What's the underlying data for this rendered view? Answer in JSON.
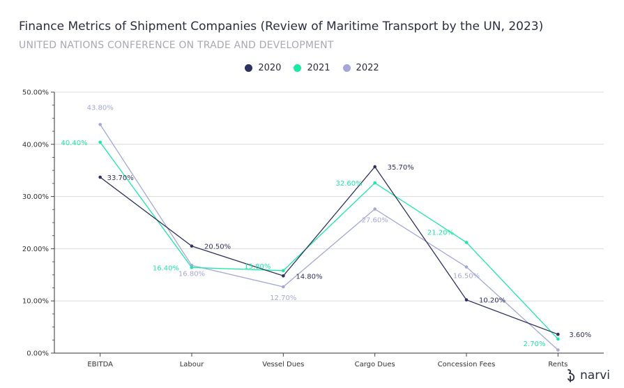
{
  "chart_data": {
    "type": "line",
    "title": "Finance Metrics of Shipment Companies (Review of Maritime Transport by the UN, 2023)",
    "subtitle": "UNITED NATIONS CONFERENCE ON TRADE AND DEVELOPMENT",
    "categories": [
      "EBITDA",
      "Labour",
      "Vessel Dues",
      "Cargo Dues",
      "Concession Fees",
      "Rents"
    ],
    "ylim": [
      0,
      50
    ],
    "yticks": [
      0,
      10,
      20,
      30,
      40,
      50
    ],
    "ytick_labels": [
      "0.00%",
      "10.00%",
      "20.00%",
      "30.00%",
      "40.00%",
      "50.00%"
    ],
    "legend_position": "top-center",
    "series": [
      {
        "name": "2020",
        "color": "#2f3160",
        "values": [
          33.7,
          20.5,
          14.8,
          35.7,
          10.2,
          3.6
        ],
        "labels": [
          "33.70%",
          "20.50%",
          "14.80%",
          "35.70%",
          "10.20%",
          "3.60%"
        ]
      },
      {
        "name": "2021",
        "color": "#1de9a6",
        "values": [
          40.4,
          16.4,
          15.8,
          32.6,
          21.2,
          2.7
        ],
        "labels": [
          "40.40%",
          "16.40%",
          "15.80%",
          "32.60%",
          "21.20%",
          "2.70%"
        ]
      },
      {
        "name": "2022",
        "color": "#a4a8d8",
        "values": [
          43.8,
          16.8,
          12.7,
          27.6,
          16.5,
          0.6
        ],
        "labels": [
          "43.80%",
          "16.80%",
          "12.70%",
          "27.60%",
          "16.50%",
          ""
        ]
      }
    ]
  },
  "branding": {
    "logo_text": "narvi"
  }
}
